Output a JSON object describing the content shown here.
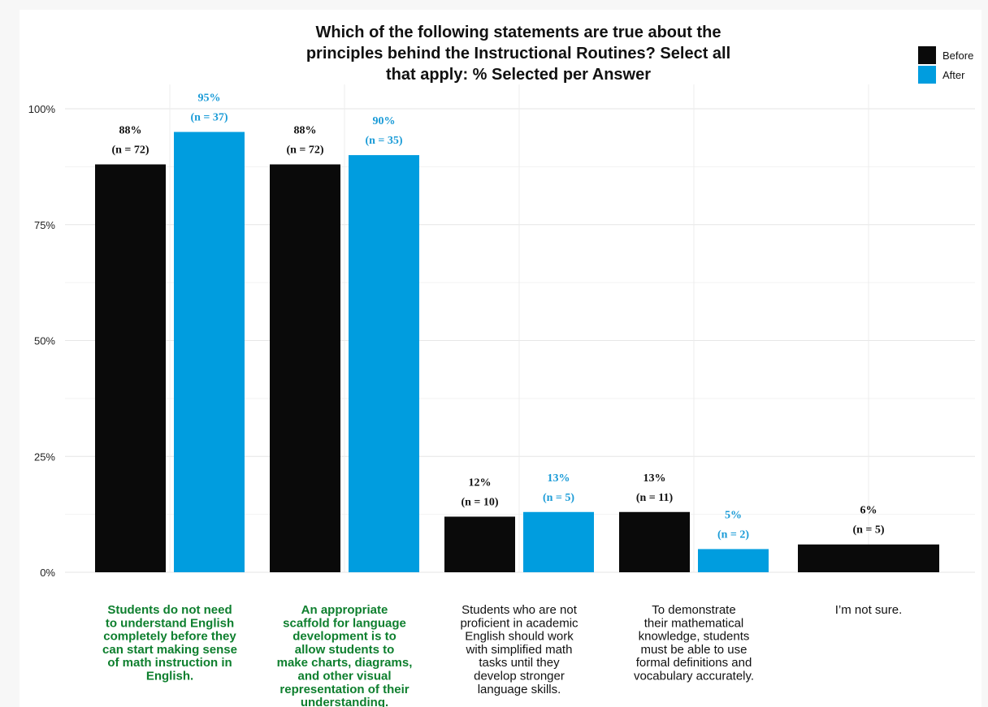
{
  "chart_data": {
    "type": "bar",
    "title_lines": [
      "Which of the following statements are true about the",
      "principles behind the Instructional Routines? Select all",
      "that apply: % Selected per Answer"
    ],
    "ylim": [
      0,
      100
    ],
    "yticks": [
      {
        "value": 0,
        "label": "0%"
      },
      {
        "value": 25,
        "label": "25%"
      },
      {
        "value": 50,
        "label": "50%"
      },
      {
        "value": 75,
        "label": "75%"
      },
      {
        "value": 100,
        "label": "100%"
      }
    ],
    "grid": true,
    "legend_position": "top-right",
    "categories": [
      {
        "lines": [
          "Students do not need",
          "to understand English",
          "completely before they",
          "can start making sense",
          "of math instruction in",
          "English."
        ],
        "highlight": true
      },
      {
        "lines": [
          "An appropriate",
          "scaffold for language",
          "development is to",
          "allow students to",
          "make charts, diagrams,",
          "and other visual",
          "representation of their",
          "understanding."
        ],
        "highlight": true
      },
      {
        "lines": [
          "Students who are not",
          "proficient in academic",
          "English should work",
          "with simplified math",
          "tasks until they",
          "develop stronger",
          "language skills."
        ],
        "highlight": false
      },
      {
        "lines": [
          "To demonstrate",
          "their mathematical",
          "knowledge, students",
          "must be able to use",
          "formal definitions and",
          "vocabulary accurately."
        ],
        "highlight": false
      },
      {
        "lines": [
          "I’m not sure."
        ],
        "highlight": false
      }
    ],
    "series": [
      {
        "name": "Before",
        "color": "#0a0a0a",
        "values": [
          88,
          88,
          12,
          13,
          6
        ],
        "labels": [
          "88%",
          "88%",
          "12%",
          "13%",
          "6%"
        ],
        "n_labels": [
          "(n = 72)",
          "(n = 72)",
          "(n = 10)",
          "(n = 11)",
          "(n = 5)"
        ]
      },
      {
        "name": "After",
        "color": "#009ddf",
        "values": [
          95,
          90,
          13,
          5,
          null
        ],
        "labels": [
          "95%",
          "90%",
          "13%",
          "5%",
          null
        ],
        "n_labels": [
          "(n = 37)",
          "(n = 35)",
          "(n = 5)",
          "(n = 2)",
          null
        ]
      }
    ],
    "colors": {
      "highlight_text": "#0e7f2e",
      "normal_text": "#111111",
      "after_label": "#1a9bd7"
    }
  }
}
